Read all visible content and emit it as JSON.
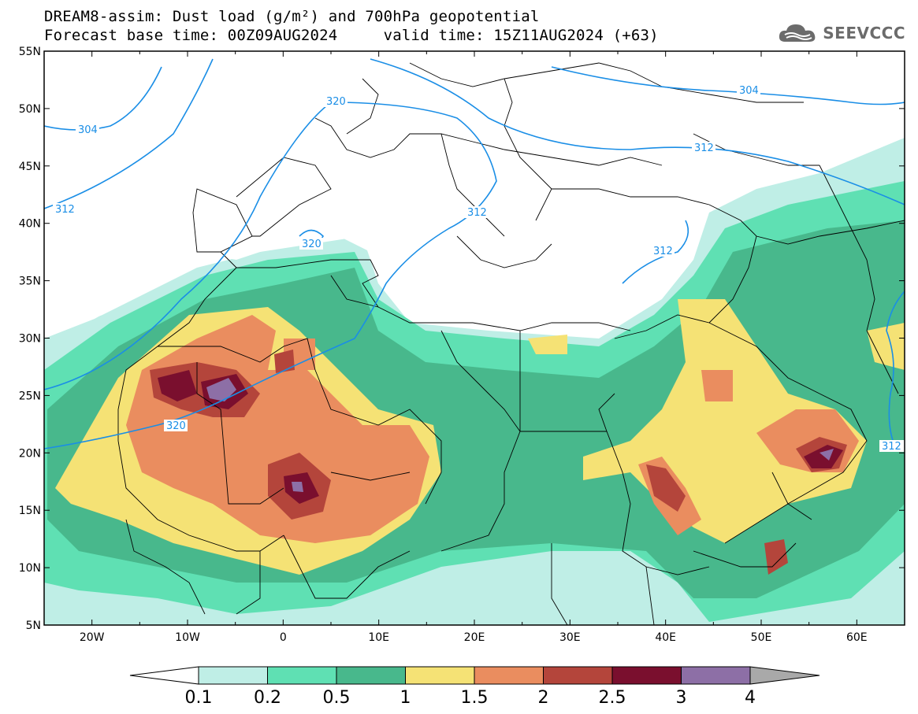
{
  "header": {
    "title_line1": "DREAM8-assim: Dust load (g/m²) and 700hPa geopotential",
    "title_line2": "Forecast base time: 00Z09AUG2024     valid time: 15Z11AUG2024 (+63)",
    "logo_text": "SEEVCCC"
  },
  "map": {
    "lon_range": [
      -25,
      65
    ],
    "lat_range": [
      5,
      55
    ],
    "lat_ticks": [
      "55N",
      "50N",
      "45N",
      "40N",
      "35N",
      "30N",
      "25N",
      "20N",
      "15N",
      "10N",
      "5N"
    ],
    "lon_ticks": [
      "20W",
      "10W",
      "0",
      "10E",
      "20E",
      "30E",
      "40E",
      "50E",
      "60E"
    ],
    "contour_labels": [
      "304",
      "304",
      "320",
      "312",
      "320",
      "320",
      "312",
      "312",
      "312",
      "312"
    ]
  },
  "colorbar": {
    "labels": [
      "0.1",
      "0.2",
      "0.5",
      "1",
      "1.5",
      "2",
      "2.5",
      "3",
      "4"
    ],
    "colors": [
      "#ffffff",
      "#bfeee6",
      "#5fe0b3",
      "#48b88c",
      "#f5e275",
      "#ea8d5f",
      "#b4453b",
      "#7a0f2e",
      "#8d6fa6",
      "#a9a9a9"
    ]
  }
}
